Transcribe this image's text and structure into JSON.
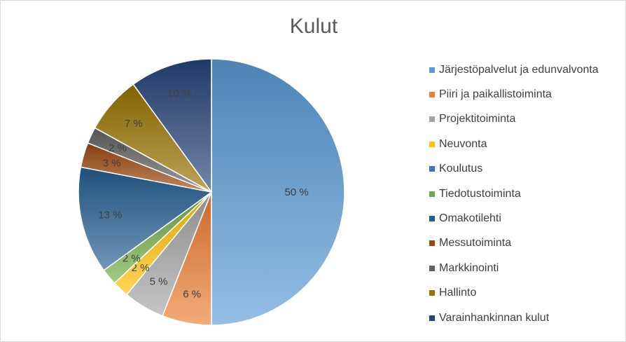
{
  "chart_data": {
    "type": "pie",
    "title": "Kulut",
    "legend_position": "right",
    "slices": [
      {
        "label": "Järjestöpalvelut ja edunvalvonta",
        "value": 50,
        "data_label": "50 %",
        "color": "#5b9bd5"
      },
      {
        "label": "Piiri ja paikallistoiminta",
        "value": 6,
        "data_label": "6 %",
        "color": "#ed7d31"
      },
      {
        "label": "Projektitoiminta",
        "value": 5,
        "data_label": "5 %",
        "color": "#a5a5a5"
      },
      {
        "label": "Neuvonta",
        "value": 2,
        "data_label": "2 %",
        "color": "#ffc000"
      },
      {
        "label": "Koulutus",
        "value": 0,
        "data_label": "",
        "color": "#4472c4"
      },
      {
        "label": "Tiedotustoiminta",
        "value": 2,
        "data_label": "2 %",
        "color": "#70ad47"
      },
      {
        "label": "Omakotilehti",
        "value": 13,
        "data_label": "13 %",
        "color": "#255e91"
      },
      {
        "label": "Messutoiminta",
        "value": 3,
        "data_label": "3 %",
        "color": "#9e480e"
      },
      {
        "label": "Markkinointi",
        "value": 2,
        "data_label": "2 %",
        "color": "#636363"
      },
      {
        "label": "Hallinto",
        "value": 7,
        "data_label": "7 %",
        "color": "#997300"
      },
      {
        "label": "Varainhankinnan kulut",
        "value": 10,
        "data_label": "10 %",
        "color": "#264478"
      }
    ]
  }
}
